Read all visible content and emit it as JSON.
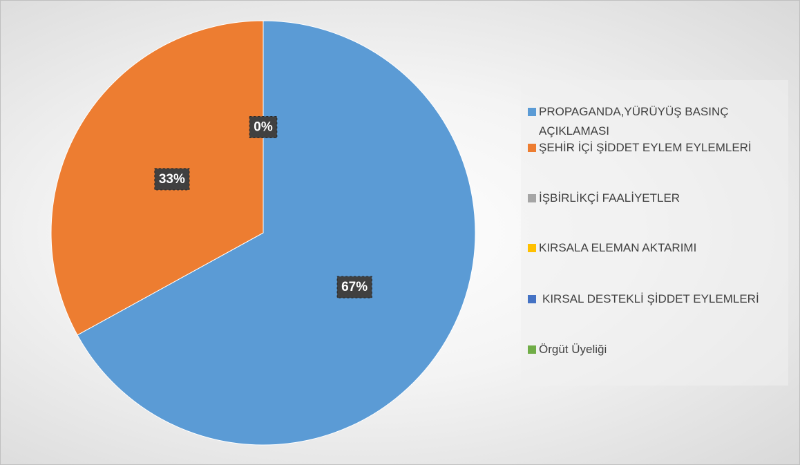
{
  "chart_data": {
    "type": "pie",
    "categories": [
      "PROPAGANDA,YÜRÜYÜŞ BASINÇ AÇIKLAMASI",
      "ŞEHİR İÇİ ŞİDDET EYLEM EYLEMLERİ",
      "İŞBİRLİKÇİ FAALİYETLER",
      "KIRSALA ELEMAN AKTARIMI",
      "KIRSAL DESTEKLİ ŞİDDET EYLEMLERİ",
      "Örgüt Üyeliği"
    ],
    "values": [
      67,
      33,
      0,
      0,
      0,
      0
    ],
    "value_labels": [
      "67%",
      "33%",
      "0%",
      null,
      null,
      null
    ],
    "colors": [
      "#5b9bd5",
      "#ed7d31",
      "#a5a5a5",
      "#ffc000",
      "#4472c4",
      "#70ad47"
    ],
    "legend": "right"
  }
}
